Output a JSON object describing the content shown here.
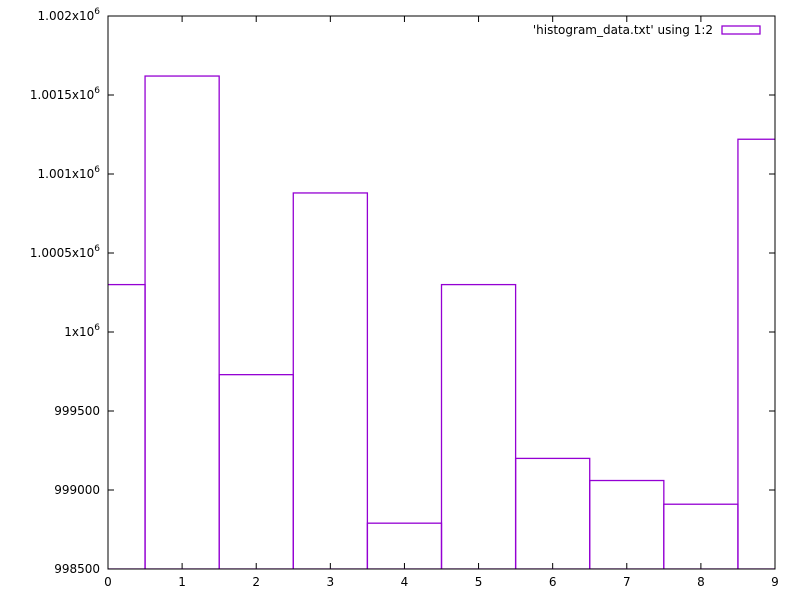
{
  "chart_data": {
    "type": "bar",
    "style": "boxes",
    "categories": [
      0,
      1,
      2,
      3,
      4,
      5,
      6,
      7,
      8,
      9
    ],
    "series": [
      {
        "name": "'histogram_data.txt' using 1:2",
        "values": [
          1000300,
          1001620,
          999730,
          1000880,
          998790,
          1000300,
          999200,
          999060,
          998910,
          1001220
        ],
        "color": "#9400d3"
      }
    ],
    "xlim": [
      0,
      9
    ],
    "ylim": [
      998500,
      1002000
    ],
    "x_ticks": [
      {
        "value": 0,
        "label": "0"
      },
      {
        "value": 1,
        "label": "1"
      },
      {
        "value": 2,
        "label": "2"
      },
      {
        "value": 3,
        "label": "3"
      },
      {
        "value": 4,
        "label": "4"
      },
      {
        "value": 5,
        "label": "5"
      },
      {
        "value": 6,
        "label": "6"
      },
      {
        "value": 7,
        "label": "7"
      },
      {
        "value": 8,
        "label": "8"
      },
      {
        "value": 9,
        "label": "9"
      }
    ],
    "y_ticks": [
      {
        "value": 998500,
        "label": "998500"
      },
      {
        "value": 999000,
        "label": "999000"
      },
      {
        "value": 999500,
        "label": "999500"
      },
      {
        "value": 1000000,
        "mantissa": "1x10",
        "exp": "6"
      },
      {
        "value": 1000500,
        "mantissa": "1.0005x10",
        "exp": "6"
      },
      {
        "value": 1001000,
        "mantissa": "1.001x10",
        "exp": "6"
      },
      {
        "value": 1001500,
        "mantissa": "1.0015x10",
        "exp": "6"
      },
      {
        "value": 1002000,
        "mantissa": "1.002x10",
        "exp": "6"
      }
    ],
    "title": "",
    "xlabel": "",
    "ylabel": "",
    "grid": false,
    "legend": "top-right"
  }
}
